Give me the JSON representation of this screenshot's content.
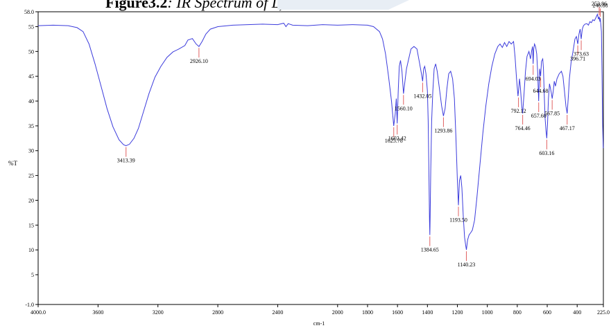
{
  "caption": {
    "bold": "Figure3.2",
    "rest": ": IR Spectrum of L)-Cu"
  },
  "chart_data": {
    "type": "line",
    "title": "",
    "xlabel": "cm-1",
    "ylabel": "%T",
    "xlim": [
      4000.0,
      225.0
    ],
    "ylim": [
      -1.0,
      58.0
    ],
    "x_ticks": [
      "4000.0",
      "3600",
      "3200",
      "2800",
      "2400",
      "2000",
      "1800",
      "1600",
      "1400",
      "1200",
      "1000",
      "800",
      "600",
      "400",
      "225.0"
    ],
    "y_ticks": [
      "-1.0",
      "5",
      "10",
      "15",
      "20",
      "25",
      "30",
      "35",
      "40",
      "45",
      "50",
      "55",
      "58.0"
    ],
    "line_color": "#3b3bdc",
    "marker_color": "#e06060",
    "series": [
      {
        "points": [
          [
            4000,
            55.2
          ],
          [
            3900,
            55.3
          ],
          [
            3800,
            55.2
          ],
          [
            3740,
            54.8
          ],
          [
            3700,
            54.0
          ],
          [
            3660,
            51.5
          ],
          [
            3620,
            47.5
          ],
          [
            3580,
            43.0
          ],
          [
            3540,
            38.5
          ],
          [
            3500,
            34.8
          ],
          [
            3460,
            32.2
          ],
          [
            3430,
            31.2
          ],
          [
            3413,
            31.0
          ],
          [
            3390,
            31.3
          ],
          [
            3360,
            32.5
          ],
          [
            3330,
            34.5
          ],
          [
            3300,
            37.5
          ],
          [
            3260,
            41.5
          ],
          [
            3220,
            44.8
          ],
          [
            3180,
            47.0
          ],
          [
            3140,
            48.8
          ],
          [
            3100,
            49.9
          ],
          [
            3060,
            50.5
          ],
          [
            3020,
            51.2
          ],
          [
            3000,
            52.3
          ],
          [
            2970,
            52.6
          ],
          [
            2945,
            51.5
          ],
          [
            2926,
            51.0
          ],
          [
            2905,
            52.0
          ],
          [
            2880,
            53.5
          ],
          [
            2850,
            54.5
          ],
          [
            2800,
            55.0
          ],
          [
            2700,
            55.3
          ],
          [
            2600,
            55.4
          ],
          [
            2500,
            55.5
          ],
          [
            2400,
            55.4
          ],
          [
            2360,
            55.7
          ],
          [
            2345,
            55.0
          ],
          [
            2330,
            55.6
          ],
          [
            2300,
            55.3
          ],
          [
            2200,
            55.2
          ],
          [
            2100,
            55.4
          ],
          [
            2000,
            55.3
          ],
          [
            1900,
            55.4
          ],
          [
            1800,
            55.3
          ],
          [
            1760,
            55.0
          ],
          [
            1720,
            54.0
          ],
          [
            1700,
            52.5
          ],
          [
            1680,
            49.5
          ],
          [
            1660,
            45.0
          ],
          [
            1640,
            40.0
          ],
          [
            1625,
            35.0
          ],
          [
            1615,
            37.5
          ],
          [
            1608,
            40.5
          ],
          [
            1602,
            35.5
          ],
          [
            1595,
            42.0
          ],
          [
            1588,
            47.0
          ],
          [
            1580,
            48.2
          ],
          [
            1570,
            46.0
          ],
          [
            1560,
            41.5
          ],
          [
            1550,
            44.0
          ],
          [
            1540,
            46.5
          ],
          [
            1525,
            48.5
          ],
          [
            1510,
            50.5
          ],
          [
            1490,
            51.0
          ],
          [
            1470,
            50.5
          ],
          [
            1455,
            48.0
          ],
          [
            1440,
            45.5
          ],
          [
            1432,
            44.0
          ],
          [
            1425,
            46.5
          ],
          [
            1418,
            47.0
          ],
          [
            1410,
            45.5
          ],
          [
            1400,
            42.0
          ],
          [
            1395,
            36.0
          ],
          [
            1390,
            25.0
          ],
          [
            1386,
            16.0
          ],
          [
            1384,
            13.0
          ],
          [
            1382,
            16.5
          ],
          [
            1378,
            26.0
          ],
          [
            1372,
            36.0
          ],
          [
            1364,
            42.0
          ],
          [
            1355,
            46.5
          ],
          [
            1345,
            47.5
          ],
          [
            1335,
            46.0
          ],
          [
            1320,
            42.5
          ],
          [
            1305,
            39.0
          ],
          [
            1293,
            37.0
          ],
          [
            1282,
            38.5
          ],
          [
            1270,
            42.5
          ],
          [
            1258,
            45.5
          ],
          [
            1245,
            46.0
          ],
          [
            1232,
            44.5
          ],
          [
            1220,
            40.5
          ],
          [
            1210,
            33.0
          ],
          [
            1200,
            24.0
          ],
          [
            1193,
            19.0
          ],
          [
            1186,
            24.0
          ],
          [
            1178,
            25.0
          ],
          [
            1170,
            22.5
          ],
          [
            1160,
            16.5
          ],
          [
            1152,
            12.5
          ],
          [
            1145,
            11.0
          ],
          [
            1140,
            10.0
          ],
          [
            1132,
            12.0
          ],
          [
            1122,
            13.0
          ],
          [
            1110,
            13.5
          ],
          [
            1100,
            14.0
          ],
          [
            1085,
            16.0
          ],
          [
            1070,
            20.5
          ],
          [
            1050,
            27.0
          ],
          [
            1030,
            33.5
          ],
          [
            1010,
            39.0
          ],
          [
            990,
            43.5
          ],
          [
            970,
            47.0
          ],
          [
            950,
            49.5
          ],
          [
            930,
            51.0
          ],
          [
            915,
            51.5
          ],
          [
            900,
            50.8
          ],
          [
            885,
            51.8
          ],
          [
            870,
            51.0
          ],
          [
            855,
            52.0
          ],
          [
            840,
            51.5
          ],
          [
            825,
            52.0
          ],
          [
            815,
            49.0
          ],
          [
            805,
            44.5
          ],
          [
            795,
            41.0
          ],
          [
            790,
            42.5
          ],
          [
            785,
            44.5
          ],
          [
            780,
            43.0
          ],
          [
            770,
            39.0
          ],
          [
            764,
            37.5
          ],
          [
            755,
            41.5
          ],
          [
            745,
            46.0
          ],
          [
            735,
            49.0
          ],
          [
            722,
            50.0
          ],
          [
            712,
            48.5
          ],
          [
            705,
            50.0
          ],
          [
            698,
            51.0
          ],
          [
            694,
            47.5
          ],
          [
            690,
            50.5
          ],
          [
            685,
            51.5
          ],
          [
            678,
            51.0
          ],
          [
            670,
            49.5
          ],
          [
            664,
            46.0
          ],
          [
            660,
            42.5
          ],
          [
            657,
            40.0
          ],
          [
            654,
            43.5
          ],
          [
            650,
            46.5
          ],
          [
            644,
            45.0
          ],
          [
            638,
            48.0
          ],
          [
            630,
            48.5
          ],
          [
            625,
            46.5
          ],
          [
            620,
            41.5
          ],
          [
            614,
            36.5
          ],
          [
            608,
            34.0
          ],
          [
            603,
            32.5
          ],
          [
            598,
            35.5
          ],
          [
            592,
            40.5
          ],
          [
            585,
            43.5
          ],
          [
            578,
            42.5
          ],
          [
            572,
            41.5
          ],
          [
            567,
            40.5
          ],
          [
            560,
            42.0
          ],
          [
            553,
            44.0
          ],
          [
            545,
            43.0
          ],
          [
            535,
            44.5
          ],
          [
            520,
            45.5
          ],
          [
            505,
            46.0
          ],
          [
            495,
            45.0
          ],
          [
            485,
            42.0
          ],
          [
            475,
            39.0
          ],
          [
            467,
            37.5
          ],
          [
            460,
            40.5
          ],
          [
            452,
            44.5
          ],
          [
            440,
            48.0
          ],
          [
            428,
            50.0
          ],
          [
            415,
            52.5
          ],
          [
            405,
            53.0
          ],
          [
            396,
            51.5
          ],
          [
            388,
            53.5
          ],
          [
            380,
            54.5
          ],
          [
            373,
            52.5
          ],
          [
            366,
            54.5
          ],
          [
            358,
            55.2
          ],
          [
            348,
            55.5
          ],
          [
            335,
            55.6
          ],
          [
            325,
            55.3
          ],
          [
            315,
            56.0
          ],
          [
            305,
            55.8
          ],
          [
            295,
            56.4
          ],
          [
            285,
            56.2
          ],
          [
            275,
            56.8
          ],
          [
            265,
            57.5
          ],
          [
            258,
            56.5
          ],
          [
            253,
            57.0
          ],
          [
            248,
            56.0
          ],
          [
            246,
            56.7
          ],
          [
            242,
            55.5
          ],
          [
            238,
            54.0
          ],
          [
            234,
            45.0
          ],
          [
            230,
            35.5
          ],
          [
            226,
            30.5
          ]
        ]
      }
    ],
    "peaks": [
      {
        "x": 3413,
        "y": 31.0,
        "label": "3413.39"
      },
      {
        "x": 2926,
        "y": 51.0,
        "label": "2926.10"
      },
      {
        "x": 1625,
        "y": 35.0,
        "label": "1625.78"
      },
      {
        "x": 1602,
        "y": 35.5,
        "label": "1602.42"
      },
      {
        "x": 1560,
        "y": 41.5,
        "label": "1560.10"
      },
      {
        "x": 1432,
        "y": 44.0,
        "label": "1432.05"
      },
      {
        "x": 1384,
        "y": 13.0,
        "label": "1384.65"
      },
      {
        "x": 1293,
        "y": 37.0,
        "label": "1293.86"
      },
      {
        "x": 1193,
        "y": 19.0,
        "label": "1193.50"
      },
      {
        "x": 1140,
        "y": 10.0,
        "label": "1140.23"
      },
      {
        "x": 792,
        "y": 41.0,
        "label": "792.12"
      },
      {
        "x": 764,
        "y": 37.5,
        "label": "764.46"
      },
      {
        "x": 694,
        "y": 47.5,
        "label": "694.03"
      },
      {
        "x": 657,
        "y": 40.0,
        "label": "657.60"
      },
      {
        "x": 644,
        "y": 45.0,
        "label": "644.68"
      },
      {
        "x": 603,
        "y": 32.5,
        "label": "603.16"
      },
      {
        "x": 567,
        "y": 40.5,
        "label": "567.85"
      },
      {
        "x": 467,
        "y": 37.5,
        "label": "467.17"
      },
      {
        "x": 396,
        "y": 51.5,
        "label": "396.71"
      },
      {
        "x": 373,
        "y": 52.5,
        "label": "373.63"
      },
      {
        "x": 253,
        "y": 57.0,
        "label": "253.86"
      },
      {
        "x": 246,
        "y": 56.7,
        "label": "246.88"
      }
    ]
  }
}
